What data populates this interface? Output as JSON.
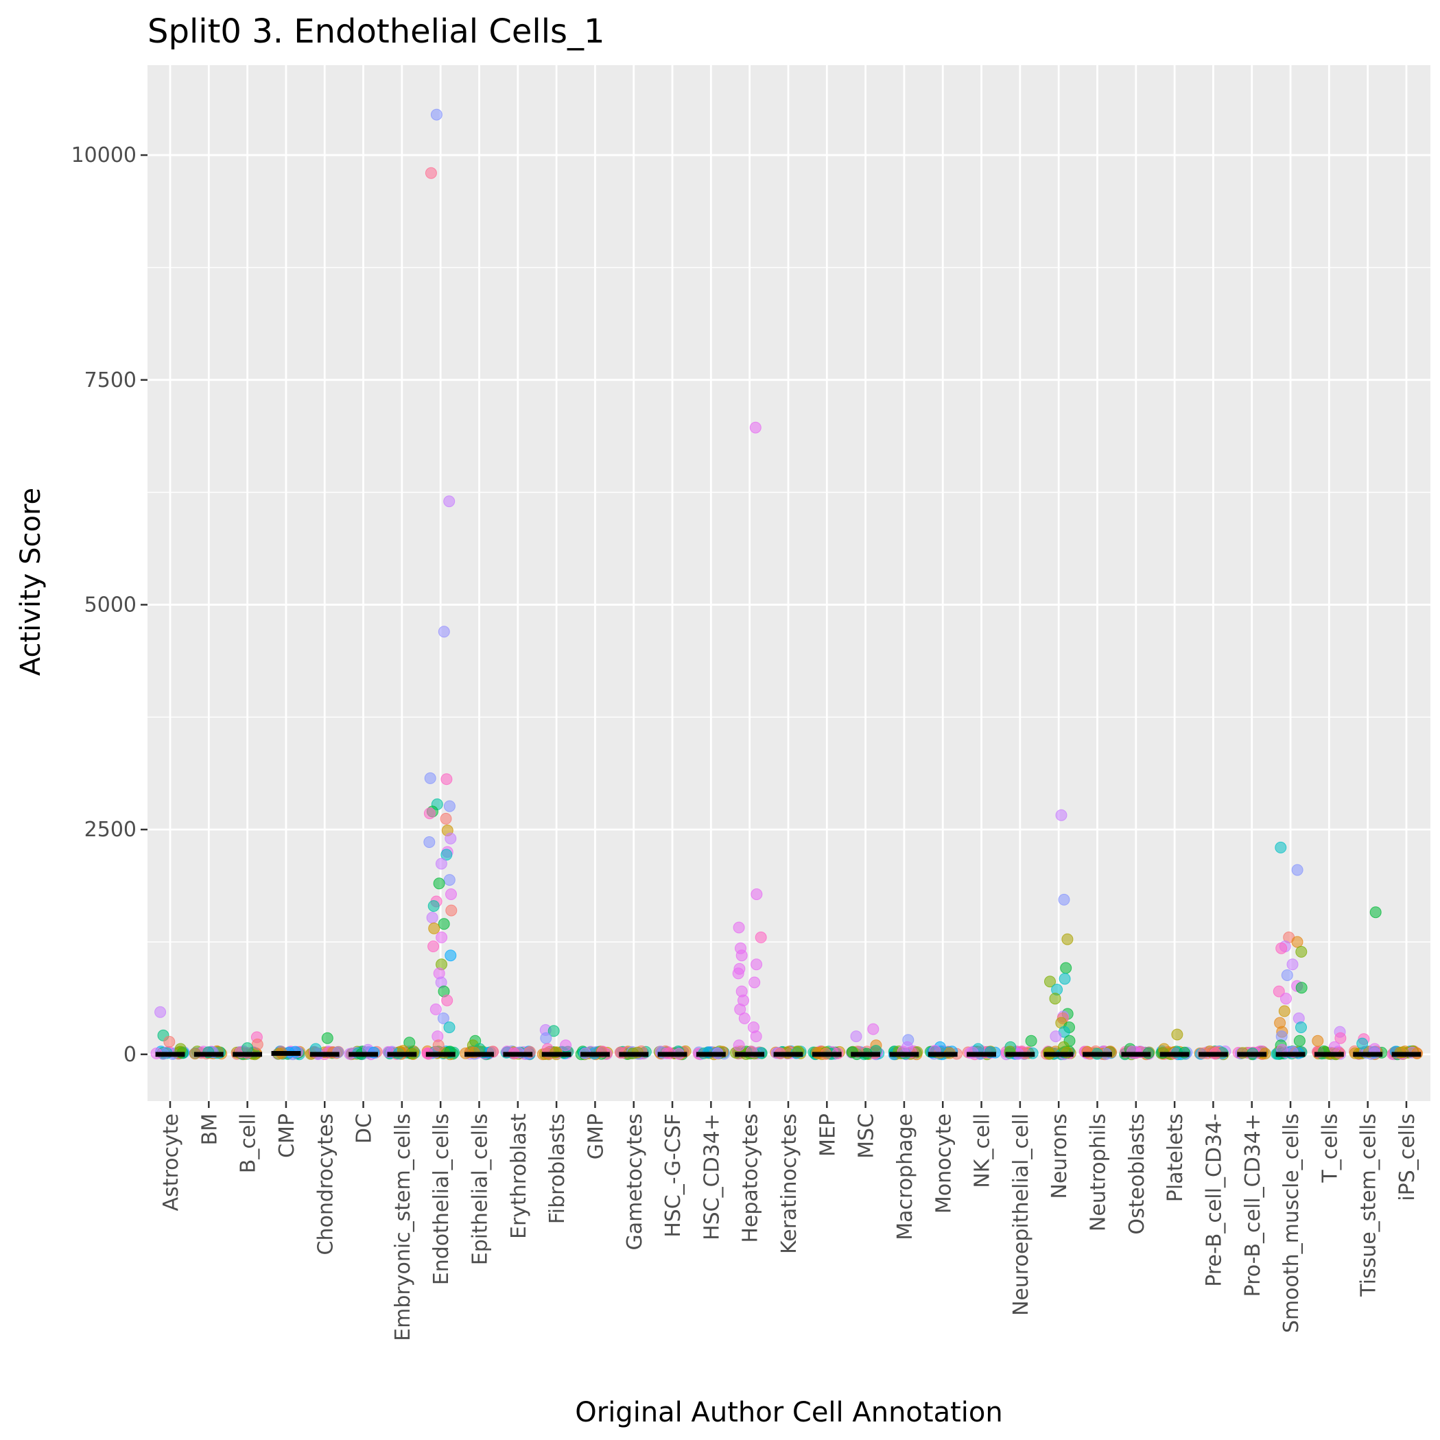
{
  "chart_data": {
    "type": "scatter",
    "title": "Split0 3. Endothelial Cells_1",
    "xlabel": "Original Author Cell Annotation",
    "ylabel": "Activity Score",
    "ylim": [
      -520,
      11000
    ],
    "yticks": [
      0,
      2500,
      5000,
      7500,
      10000
    ],
    "grid": true,
    "legend": "none",
    "categories": [
      "Astrocyte",
      "BM",
      "B_cell",
      "CMP",
      "Chondrocytes",
      "DC",
      "Embryonic_stem_cells",
      "Endothelial_cells",
      "Epithelial_cells",
      "Erythroblast",
      "Fibroblasts",
      "GMP",
      "Gametocytes",
      "HSC_-G-CSF",
      "HSC_CD34+",
      "Hepatocytes",
      "Keratinocytes",
      "MEP",
      "MSC",
      "Macrophage",
      "Monocyte",
      "NK_cell",
      "Neuroepithelial_cell",
      "Neurons",
      "Neutrophils",
      "Osteoblasts",
      "Platelets",
      "Pre-B_cell_CD34-",
      "Pro-B_cell_CD34+",
      "Smooth_muscle_cells",
      "T_cells",
      "Tissue_stem_cells",
      "iPS_cells"
    ],
    "medians": [
      0,
      0,
      0,
      10,
      0,
      0,
      0,
      0,
      0,
      0,
      0,
      0,
      0,
      0,
      0,
      0,
      0,
      0,
      0,
      0,
      0,
      0,
      0,
      0,
      0,
      0,
      0,
      0,
      0,
      0,
      0,
      0,
      0
    ],
    "outliers": [
      {
        "category": "Astrocyte",
        "points": [
          [
            470,
            "#C77CFF"
          ],
          [
            210,
            "#00BF7D"
          ],
          [
            140,
            "#F8766D"
          ],
          [
            60,
            "#7CAE00"
          ]
        ]
      },
      {
        "category": "B_cell",
        "points": [
          [
            190,
            "#FF61C3"
          ],
          [
            110,
            "#F8766D"
          ],
          [
            70,
            "#00BF7D"
          ]
        ]
      },
      {
        "category": "CMP",
        "points": [
          [
            20,
            "#00A9FF"
          ],
          [
            10,
            "#E68613"
          ]
        ]
      },
      {
        "category": "Chondrocytes",
        "points": [
          [
            180,
            "#00BA38"
          ],
          [
            60,
            "#00BFC4"
          ]
        ]
      },
      {
        "category": "DC",
        "points": [
          [
            50,
            "#C77CFF"
          ],
          [
            20,
            "#00A9FF"
          ]
        ]
      },
      {
        "category": "Embryonic_stem_cells",
        "points": [
          [
            130,
            "#00BA38"
          ],
          [
            40,
            "#CD9600"
          ]
        ]
      },
      {
        "category": "Endothelial_cells",
        "points": [
          [
            10450,
            "#8494FF"
          ],
          [
            9800,
            "#FF6C91"
          ],
          [
            6150,
            "#C77CFF"
          ],
          [
            4700,
            "#9590FF"
          ],
          [
            3070,
            "#8494FF"
          ],
          [
            3060,
            "#FF61C3"
          ],
          [
            2780,
            "#00C1A3"
          ],
          [
            2760,
            "#8494FF"
          ],
          [
            2700,
            "#00BA38"
          ],
          [
            2680,
            "#FF61C3"
          ],
          [
            2620,
            "#F8766D"
          ],
          [
            2490,
            "#CD9600"
          ],
          [
            2400,
            "#C77CFF"
          ],
          [
            2360,
            "#8494FF"
          ],
          [
            2250,
            "#E76BF3"
          ],
          [
            2220,
            "#00BFC4"
          ],
          [
            2120,
            "#C77CFF"
          ],
          [
            1940,
            "#8494FF"
          ],
          [
            1900,
            "#00BA38"
          ],
          [
            1780,
            "#E76BF3"
          ],
          [
            1700,
            "#FF61C3"
          ],
          [
            1650,
            "#00C1A3"
          ],
          [
            1600,
            "#F8766D"
          ],
          [
            1520,
            "#C77CFF"
          ],
          [
            1450,
            "#00BA38"
          ],
          [
            1400,
            "#CD9600"
          ],
          [
            1300,
            "#E76BF3"
          ],
          [
            1200,
            "#FF61C3"
          ],
          [
            1100,
            "#00A9FF"
          ],
          [
            1000,
            "#7CAE00"
          ],
          [
            900,
            "#E76BF3"
          ],
          [
            800,
            "#C77CFF"
          ],
          [
            700,
            "#00BA38"
          ],
          [
            600,
            "#FF61C3"
          ],
          [
            500,
            "#E76BF3"
          ],
          [
            400,
            "#8494FF"
          ],
          [
            300,
            "#00BFC4"
          ],
          [
            200,
            "#E76BF3"
          ],
          [
            100,
            "#F8766D"
          ],
          [
            30,
            "#00BA38"
          ]
        ]
      },
      {
        "category": "Epithelial_cells",
        "points": [
          [
            150,
            "#00BA38"
          ],
          [
            100,
            "#7CAE00"
          ],
          [
            60,
            "#00C08B"
          ],
          [
            20,
            "#E68613"
          ]
        ]
      },
      {
        "category": "Erythroblast",
        "points": [
          [
            20,
            "#C77CFF"
          ],
          [
            10,
            "#FF61C3"
          ]
        ]
      },
      {
        "category": "Fibroblasts",
        "points": [
          [
            270,
            "#C77CFF"
          ],
          [
            260,
            "#00BF7D"
          ],
          [
            180,
            "#8494FF"
          ],
          [
            100,
            "#E76BF3"
          ],
          [
            60,
            "#FF61C3"
          ],
          [
            20,
            "#ABA300"
          ]
        ]
      },
      {
        "category": "GMP",
        "points": [
          [
            30,
            "#FF61C3"
          ],
          [
            10,
            "#C77CFF"
          ]
        ]
      },
      {
        "category": "Gametocytes",
        "points": [
          [
            10,
            "#7CAE00"
          ],
          [
            20,
            "#ABA300"
          ]
        ]
      },
      {
        "category": "HSC_-G-CSF",
        "points": [
          [
            10,
            "#FF61C3"
          ],
          [
            5,
            "#E76BF3"
          ]
        ]
      },
      {
        "category": "HSC_CD34+",
        "points": [
          [
            15,
            "#00A9FF"
          ],
          [
            10,
            "#C77CFF"
          ]
        ]
      },
      {
        "category": "Hepatocytes",
        "points": [
          [
            6970,
            "#E76BF3"
          ],
          [
            1780,
            "#E76BF3"
          ],
          [
            1410,
            "#E76BF3"
          ],
          [
            1300,
            "#FF61C3"
          ],
          [
            1180,
            "#E76BF3"
          ],
          [
            1100,
            "#E76BF3"
          ],
          [
            1000,
            "#E76BF3"
          ],
          [
            950,
            "#E76BF3"
          ],
          [
            900,
            "#E76BF3"
          ],
          [
            800,
            "#E76BF3"
          ],
          [
            700,
            "#E76BF3"
          ],
          [
            600,
            "#E76BF3"
          ],
          [
            500,
            "#E76BF3"
          ],
          [
            400,
            "#E76BF3"
          ],
          [
            300,
            "#E76BF3"
          ],
          [
            200,
            "#E76BF3"
          ],
          [
            100,
            "#E76BF3"
          ],
          [
            30,
            "#E76BF3"
          ]
        ]
      },
      {
        "category": "Keratinocytes",
        "points": [
          [
            10,
            "#F8766D"
          ]
        ]
      },
      {
        "category": "MEP",
        "points": [
          [
            10,
            "#FF61C3"
          ],
          [
            5,
            "#F8766D"
          ]
        ]
      },
      {
        "category": "MSC",
        "points": [
          [
            280,
            "#E76BF3"
          ],
          [
            200,
            "#C77CFF"
          ],
          [
            100,
            "#E68613"
          ],
          [
            40,
            "#00BF7D"
          ]
        ]
      },
      {
        "category": "Macrophage",
        "points": [
          [
            160,
            "#8494FF"
          ],
          [
            80,
            "#C77CFF"
          ],
          [
            30,
            "#E76BF3"
          ]
        ]
      },
      {
        "category": "Monocyte",
        "points": [
          [
            80,
            "#00A9FF"
          ],
          [
            40,
            "#E76BF3"
          ]
        ]
      },
      {
        "category": "NK_cell",
        "points": [
          [
            60,
            "#00BFC4"
          ],
          [
            20,
            "#C77CFF"
          ]
        ]
      },
      {
        "category": "Neuroepithelial_cell",
        "points": [
          [
            150,
            "#00BA38"
          ],
          [
            80,
            "#00BF7D"
          ],
          [
            30,
            "#7CAE00"
          ]
        ]
      },
      {
        "category": "Neurons",
        "points": [
          [
            2660,
            "#C77CFF"
          ],
          [
            1720,
            "#8494FF"
          ],
          [
            1280,
            "#ABA300"
          ],
          [
            960,
            "#00BA38"
          ],
          [
            840,
            "#00BFC4"
          ],
          [
            810,
            "#7CAE00"
          ],
          [
            720,
            "#00BFC4"
          ],
          [
            620,
            "#7CAE00"
          ],
          [
            450,
            "#00BA38"
          ],
          [
            420,
            "#C77CFF"
          ],
          [
            400,
            "#F8766D"
          ],
          [
            350,
            "#ABA300"
          ],
          [
            300,
            "#00BA38"
          ],
          [
            250,
            "#00BFC4"
          ],
          [
            200,
            "#C77CFF"
          ],
          [
            150,
            "#00BA38"
          ],
          [
            80,
            "#7CAE00"
          ],
          [
            20,
            "#ABA300"
          ]
        ]
      },
      {
        "category": "Neutrophils",
        "points": [
          [
            10,
            "#E68613"
          ],
          [
            5,
            "#00BFC4"
          ]
        ]
      },
      {
        "category": "Osteoblasts",
        "points": [
          [
            60,
            "#00BA38"
          ],
          [
            30,
            "#E76BF3"
          ]
        ]
      },
      {
        "category": "Platelets",
        "points": [
          [
            220,
            "#ABA300"
          ],
          [
            60,
            "#CD9600"
          ],
          [
            20,
            "#00BA38"
          ]
        ]
      },
      {
        "category": "Pre-B_cell_CD34-",
        "points": [
          [
            10,
            "#FF61C3"
          ]
        ]
      },
      {
        "category": "Pro-B_cell_CD34+",
        "points": [
          [
            20,
            "#FF61C3"
          ],
          [
            10,
            "#00BF7D"
          ]
        ]
      },
      {
        "category": "Smooth_muscle_cells",
        "points": [
          [
            2300,
            "#00BFC4"
          ],
          [
            2050,
            "#8494FF"
          ],
          [
            1300,
            "#F8766D"
          ],
          [
            1250,
            "#E68613"
          ],
          [
            1200,
            "#C77CFF"
          ],
          [
            1180,
            "#FF61C3"
          ],
          [
            1140,
            "#7CAE00"
          ],
          [
            1000,
            "#C77CFF"
          ],
          [
            880,
            "#8494FF"
          ],
          [
            760,
            "#E76BF3"
          ],
          [
            740,
            "#00BA38"
          ],
          [
            700,
            "#FF61C3"
          ],
          [
            620,
            "#E76BF3"
          ],
          [
            480,
            "#CD9600"
          ],
          [
            400,
            "#C77CFF"
          ],
          [
            350,
            "#E68613"
          ],
          [
            300,
            "#00BFC4"
          ],
          [
            250,
            "#E68613"
          ],
          [
            200,
            "#8494FF"
          ],
          [
            150,
            "#00BA38"
          ],
          [
            100,
            "#00BA38"
          ],
          [
            50,
            "#E76BF3"
          ]
        ]
      },
      {
        "category": "T_cells",
        "points": [
          [
            250,
            "#C77CFF"
          ],
          [
            180,
            "#FF61C3"
          ],
          [
            150,
            "#E68613"
          ],
          [
            80,
            "#E76BF3"
          ]
        ]
      },
      {
        "category": "Tissue_stem_cells",
        "points": [
          [
            1580,
            "#00BA38"
          ],
          [
            170,
            "#FF61C3"
          ],
          [
            120,
            "#00BFC4"
          ],
          [
            60,
            "#E76BF3"
          ]
        ]
      },
      {
        "category": "iPS_cells",
        "points": [
          [
            20,
            "#CD9600"
          ],
          [
            10,
            "#E68613"
          ]
        ]
      }
    ],
    "colors": {
      "panel_background": "#EBEBEB",
      "grid_major": "#FFFFFF",
      "median_bar": "#000000",
      "base_cluster": [
        "#00BA38",
        "#7CAE00",
        "#C77CFF",
        "#E76BF3",
        "#FF61C3",
        "#00BFC4",
        "#E68613",
        "#CD9600",
        "#8494FF",
        "#00A9FF",
        "#F8766D",
        "#00C08B",
        "#ABA300"
      ]
    }
  }
}
